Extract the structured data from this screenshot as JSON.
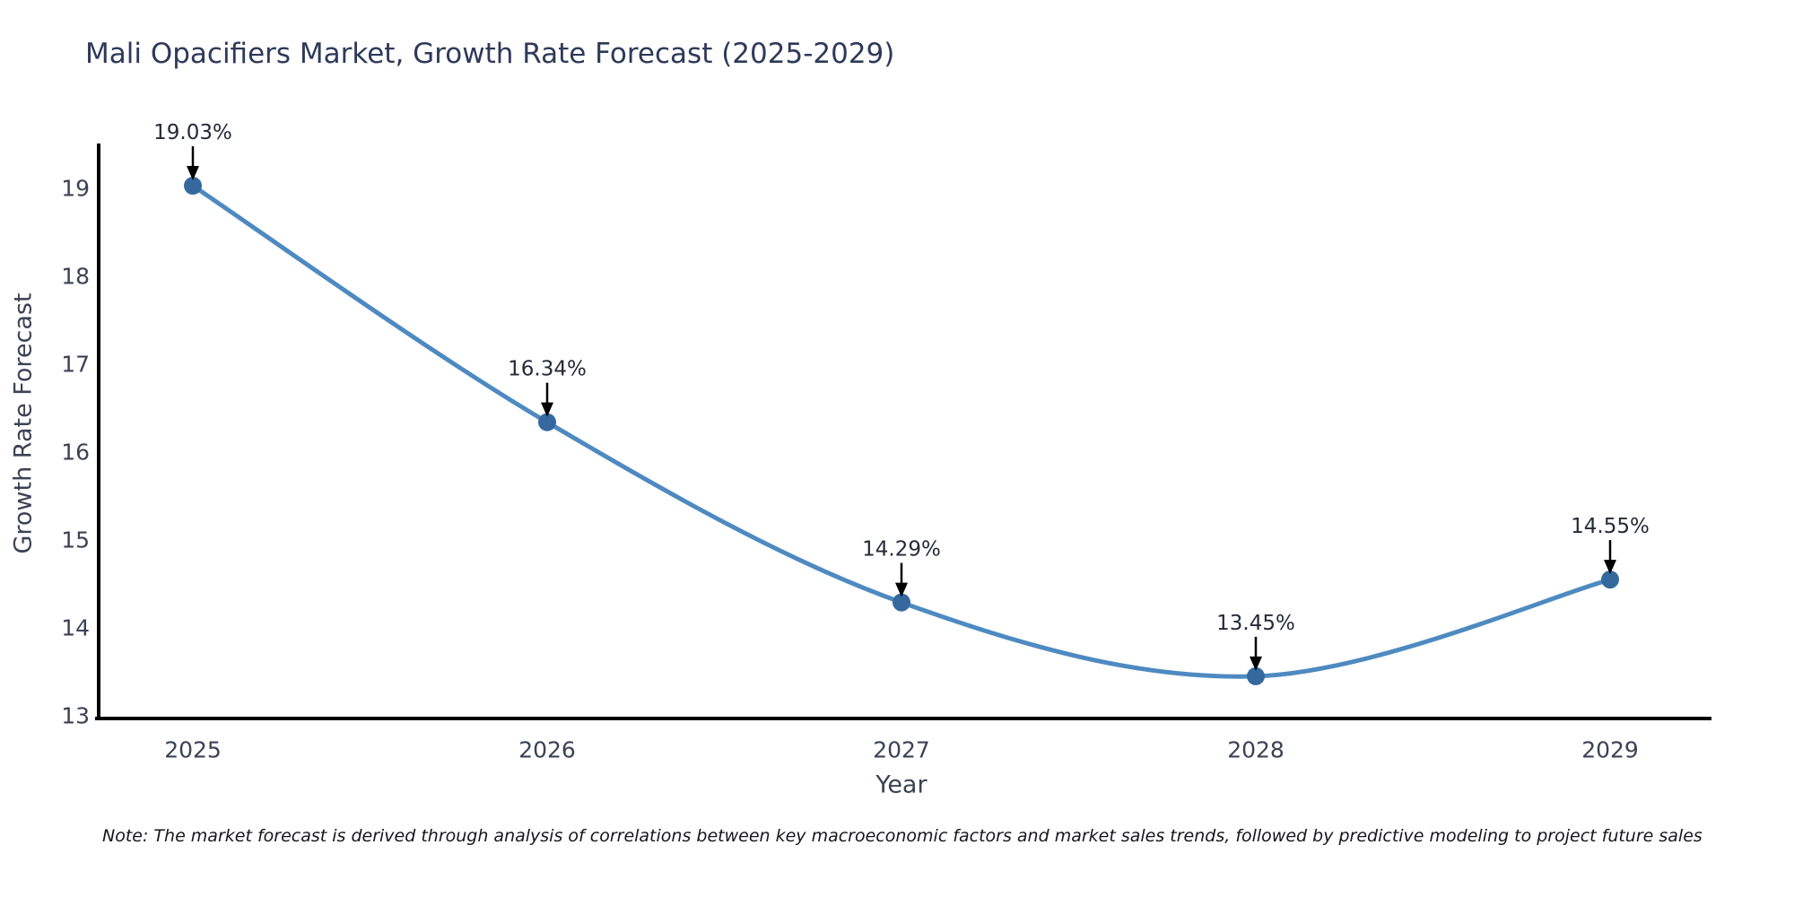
{
  "title": "Mali Opacifiers Market, Growth Rate Forecast (2025-2029)",
  "note": "Note: The market forecast is derived through analysis of correlations between key macroeconomic factors and market sales trends, followed by predictive modeling to project future sales",
  "chart_data": {
    "type": "line",
    "title": "Mali Opacifiers Market, Growth Rate Forecast (2025-2029)",
    "xlabel": "Year",
    "ylabel": "Growth Rate Forecast",
    "x": [
      "2025",
      "2026",
      "2027",
      "2028",
      "2029"
    ],
    "series": [
      {
        "name": "Growth Rate Forecast",
        "values": [
          19.03,
          16.34,
          14.29,
          13.45,
          14.55
        ]
      }
    ],
    "point_labels": [
      "19.03%",
      "16.34%",
      "14.29%",
      "13.45%",
      "14.55%"
    ],
    "yticks": [
      13,
      14,
      15,
      16,
      17,
      18,
      19
    ],
    "ylim": [
      13,
      19.6
    ],
    "grid": false,
    "legend_position": "none",
    "colors": {
      "line": "#4e8ac1",
      "marker": "#35699e",
      "arrow": "#000000",
      "axis_line": "#000000",
      "title_text": "#2e3a59",
      "axis_text": "#3b4254",
      "annotation_text": "#242a38",
      "note_text": "#16161d",
      "background": "#ffffff"
    }
  }
}
